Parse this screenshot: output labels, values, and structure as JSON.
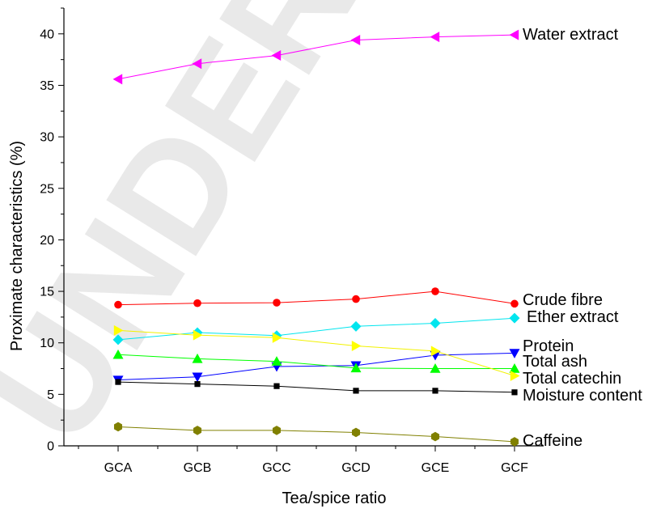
{
  "chart_data": {
    "type": "line",
    "title": "",
    "xlabel": "Tea/spice ratio",
    "ylabel": "Proximate characteristics (%)",
    "categories": [
      "GCA",
      "GCB",
      "GCC",
      "GCD",
      "GCE",
      "GCF"
    ],
    "ylim": [
      0,
      42.5
    ],
    "yticks": [
      "0",
      "5",
      "10",
      "15",
      "20",
      "25",
      "30",
      "35",
      "40"
    ],
    "grid": false,
    "legend": "labels at line ends",
    "series": [
      {
        "name": "Water extract",
        "values": [
          35.6,
          37.1,
          37.9,
          39.4,
          39.7,
          39.9
        ],
        "color": "#ff00ff",
        "marker": "triangle-left"
      },
      {
        "name": "Crude fibre",
        "values": [
          13.7,
          13.85,
          13.9,
          14.25,
          15.0,
          13.8
        ],
        "color": "#ff0000",
        "marker": "circle"
      },
      {
        "name": "Ether extract",
        "values": [
          10.3,
          11.0,
          10.7,
          11.6,
          11.9,
          12.4
        ],
        "color": "#00e5ee",
        "marker": "diamond"
      },
      {
        "name": "Protein",
        "values": [
          6.4,
          6.7,
          7.7,
          7.8,
          8.8,
          9.0
        ],
        "color": "#0000ff",
        "marker": "triangle-down"
      },
      {
        "name": "Total ash",
        "values": [
          8.85,
          8.45,
          8.2,
          7.55,
          7.5,
          7.5
        ],
        "color": "#00ff00",
        "marker": "triangle-up"
      },
      {
        "name": "Total catechin",
        "values": [
          11.2,
          10.75,
          10.5,
          9.7,
          9.2,
          6.8
        ],
        "color": "#ffff00",
        "marker": "triangle-right"
      },
      {
        "name": "Moisture content",
        "values": [
          6.2,
          6.0,
          5.8,
          5.35,
          5.35,
          5.2
        ],
        "color": "#000000",
        "marker": "square"
      },
      {
        "name": "Caffeine",
        "values": [
          1.85,
          1.5,
          1.5,
          1.3,
          0.9,
          0.4
        ],
        "color": "#808000",
        "marker": "hexagon"
      }
    ]
  },
  "watermark": {
    "text": "UNDER PEER"
  }
}
